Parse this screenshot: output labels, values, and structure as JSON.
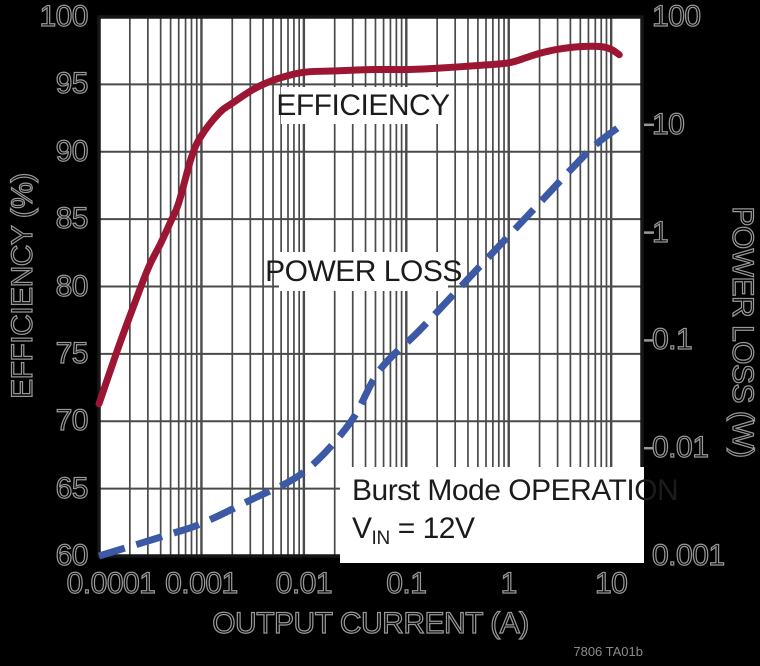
{
  "figure_code": "7806 TA01b",
  "colors": {
    "background": "#000000",
    "plot_background": "#ffffff",
    "grid": "#4a4a4a",
    "frame": "#161616",
    "outside_text_outline": "#979797",
    "efficiency_curve": "#9c1533",
    "power_loss_curve": "#3c59a6",
    "inplot_text": "#1b1b1b"
  },
  "chart_data": {
    "type": "line",
    "title": "",
    "xlabel": "OUTPUT CURRENT (A)",
    "ylabel_left": "EFFICIENCY (%)",
    "ylabel_right": "POWER LOSS (W)",
    "x_scale": "log",
    "xlim": [
      0.0001,
      20
    ],
    "x_tick_labels": [
      "0.0001",
      "0.001",
      "0.01",
      "0.1",
      "1",
      "10"
    ],
    "x_tick_values": [
      0.0001,
      0.001,
      0.01,
      0.1,
      1,
      10
    ],
    "ylim_left": [
      60,
      100
    ],
    "y_left_tick_labels": [
      "100",
      "95",
      "90",
      "85",
      "80",
      "75",
      "70",
      "65",
      "60"
    ],
    "y_left_tick_values": [
      100,
      95,
      90,
      85,
      80,
      75,
      70,
      65,
      60
    ],
    "y_right_scale": "log",
    "ylim_right": [
      0.001,
      100
    ],
    "y_right_tick_labels": [
      "100",
      "10",
      "1",
      "0.1",
      "0.01",
      "0.001"
    ],
    "y_right_tick_values": [
      100,
      10,
      1,
      0.1,
      0.01,
      0.001
    ],
    "grid": "on",
    "series": [
      {
        "name": "EFFICIENCY",
        "axis": "left",
        "style": "solid",
        "color": "#9c1533",
        "points": [
          [
            0.0001,
            71.3
          ],
          [
            0.00015,
            75.2
          ],
          [
            0.0002,
            77.8
          ],
          [
            0.0003,
            81.3
          ],
          [
            0.0004,
            83.2
          ],
          [
            0.0005,
            84.8
          ],
          [
            0.0006,
            86.2
          ],
          [
            0.0008,
            89.6
          ],
          [
            0.001,
            91.2
          ],
          [
            0.0015,
            92.9
          ],
          [
            0.002,
            93.6
          ],
          [
            0.003,
            94.5
          ],
          [
            0.004,
            95.0
          ],
          [
            0.006,
            95.5
          ],
          [
            0.01,
            95.9
          ],
          [
            0.02,
            96.0
          ],
          [
            0.05,
            96.1
          ],
          [
            0.1,
            96.1
          ],
          [
            0.2,
            96.2
          ],
          [
            0.5,
            96.4
          ],
          [
            1,
            96.6
          ],
          [
            1.5,
            97.0
          ],
          [
            2,
            97.3
          ],
          [
            3,
            97.6
          ],
          [
            5,
            97.8
          ],
          [
            8,
            97.8
          ],
          [
            10,
            97.6
          ],
          [
            12,
            97.2
          ]
        ]
      },
      {
        "name": "POWER LOSS",
        "axis": "right",
        "style": "dashed",
        "color": "#3c59a6",
        "points": [
          [
            0.0001,
            0.001
          ],
          [
            0.0005,
            0.0016
          ],
          [
            0.001,
            0.002
          ],
          [
            0.003,
            0.0033
          ],
          [
            0.01,
            0.006
          ],
          [
            0.028,
            0.017
          ],
          [
            0.055,
            0.053
          ],
          [
            0.136,
            0.125
          ],
          [
            0.42,
            0.39
          ],
          [
            1.6,
            1.5
          ],
          [
            4,
            3.8
          ],
          [
            7,
            6.5
          ],
          [
            11.5,
            9.3
          ]
        ]
      }
    ],
    "annotations": {
      "line1": "Burst Mode OPERATION",
      "vin_prefix": "V",
      "vin_sub": "IN",
      "vin_value": " = 12V"
    }
  }
}
